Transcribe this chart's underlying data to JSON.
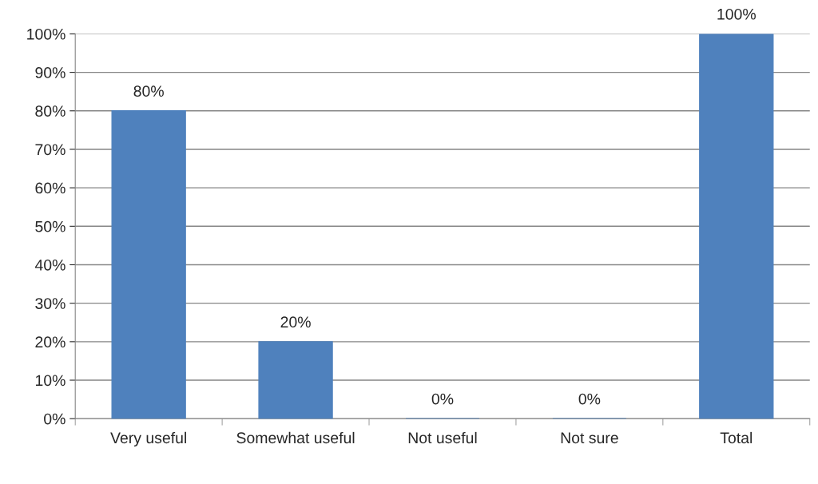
{
  "chart_data": {
    "type": "bar",
    "categories": [
      "Very useful",
      "Somewhat useful",
      "Not useful",
      "Not sure",
      "Total"
    ],
    "values": [
      80,
      20,
      0,
      0,
      100
    ],
    "value_labels": [
      "80%",
      "20%",
      "0%",
      "0%",
      "100%"
    ],
    "color": "#4f81bd",
    "ylim": [
      0,
      100
    ],
    "yticks": [
      {
        "value": 0,
        "label": "0%"
      },
      {
        "value": 10,
        "label": "10%"
      },
      {
        "value": 20,
        "label": "20%"
      },
      {
        "value": 30,
        "label": "30%"
      },
      {
        "value": 40,
        "label": "40%"
      },
      {
        "value": 50,
        "label": "50%"
      },
      {
        "value": 60,
        "label": "60%"
      },
      {
        "value": 70,
        "label": "70%"
      },
      {
        "value": 80,
        "label": "80%"
      },
      {
        "value": 90,
        "label": "90%"
      },
      {
        "value": 100,
        "label": "100%"
      }
    ],
    "grid": "y",
    "legend": false
  }
}
